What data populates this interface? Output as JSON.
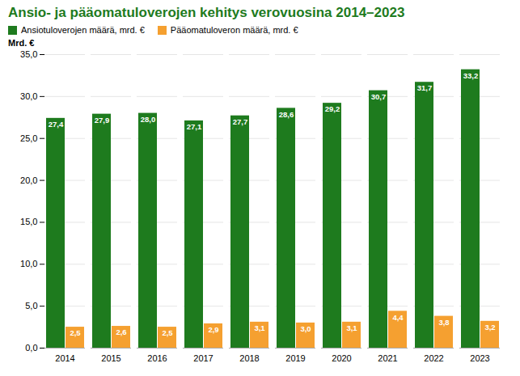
{
  "chart_data": {
    "type": "bar",
    "title": "Ansio- ja pääomatuloverojen kehitys verovuosina 2014–2023",
    "title_color": "#1e7b1e",
    "ylabel": "Mrd. €",
    "categories": [
      "2014",
      "2015",
      "2016",
      "2017",
      "2018",
      "2019",
      "2020",
      "2021",
      "2022",
      "2023"
    ],
    "series": [
      {
        "name": "Ansiotuloverojen määrä, mrd. €",
        "color": "#1e7b1e",
        "values": [
          27.4,
          27.9,
          28.0,
          27.1,
          27.7,
          28.6,
          29.2,
          30.7,
          31.7,
          33.2
        ],
        "value_labels": [
          "27,4",
          "27,9",
          "28,0",
          "27,1",
          "27,7",
          "28,6",
          "29,2",
          "30,7",
          "31,7",
          "33,2"
        ]
      },
      {
        "name": "Pääomatuloveron määrä, mrd. €",
        "color": "#f5a030",
        "values": [
          2.5,
          2.6,
          2.5,
          2.9,
          3.1,
          3.0,
          3.1,
          4.4,
          3.8,
          3.2
        ],
        "value_labels": [
          "2,5",
          "2,6",
          "2,5",
          "2,9",
          "3,1",
          "3,0",
          "3,1",
          "4,4",
          "3,8",
          "3,2"
        ]
      }
    ],
    "ylim": [
      0,
      35
    ],
    "yticks": [
      {
        "value": 0,
        "label": "0,0"
      },
      {
        "value": 5,
        "label": "5,0"
      },
      {
        "value": 10,
        "label": "10,0"
      },
      {
        "value": 15,
        "label": "15,0"
      },
      {
        "value": 20,
        "label": "20,0"
      },
      {
        "value": 25,
        "label": "25,0"
      },
      {
        "value": 30,
        "label": "30,0"
      },
      {
        "value": 35,
        "label": "35,0"
      }
    ],
    "grid": true,
    "legend": "top left",
    "data_labels": true
  }
}
